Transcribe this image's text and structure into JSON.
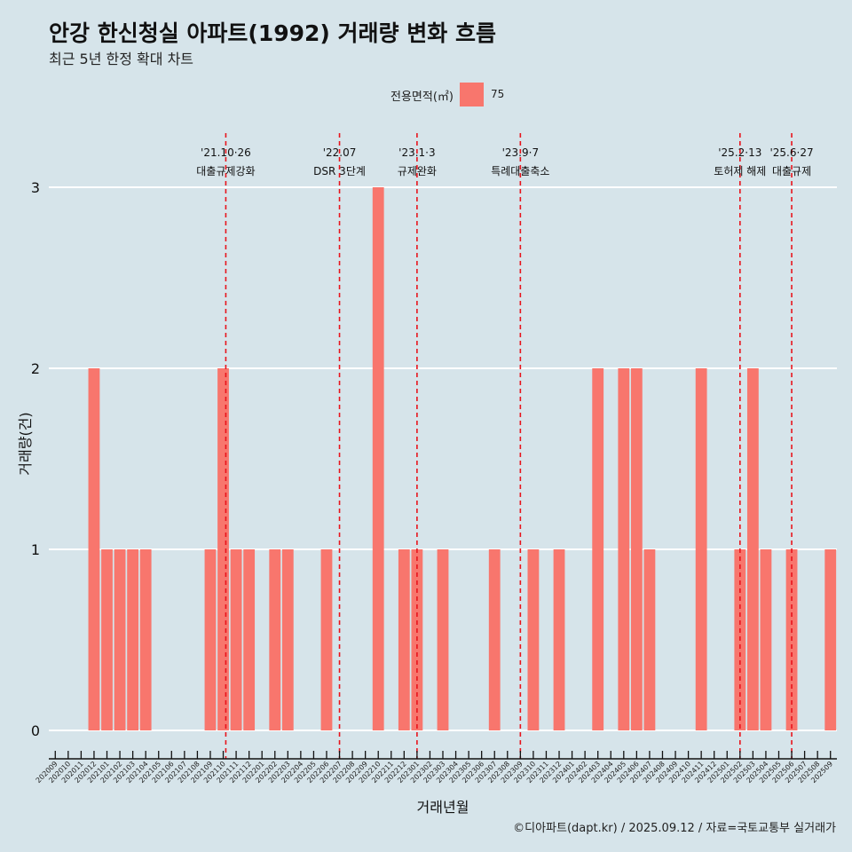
{
  "title": "안강 한신청실 아파트(1992) 거래량 변화 흐름",
  "subtitle": "최근 5년 한정 확대 차트",
  "legend": {
    "title": "전용면적(㎡)",
    "label": "75"
  },
  "caption": "©디아파트(dapt.kr) / 2025.09.12 / 자료=국토교통부 실거래가",
  "colors": {
    "bar": "#f8766d",
    "background": "#d6e4ea",
    "event_line": "#e8141c",
    "grid": "#ffffff"
  },
  "chart_data": {
    "type": "bar",
    "xlabel": "거래년월",
    "ylabel": "거래량(건)",
    "ylim": [
      0,
      3
    ],
    "y_ticks": [
      0,
      1,
      2,
      3
    ],
    "grid": true,
    "legend_position": "top",
    "categories": [
      "202009",
      "202010",
      "202011",
      "202012",
      "202101",
      "202102",
      "202103",
      "202104",
      "202105",
      "202106",
      "202107",
      "202108",
      "202109",
      "202110",
      "202111",
      "202112",
      "202201",
      "202202",
      "202203",
      "202204",
      "202205",
      "202206",
      "202207",
      "202208",
      "202209",
      "202210",
      "202211",
      "202212",
      "202301",
      "202302",
      "202303",
      "202304",
      "202305",
      "202306",
      "202307",
      "202308",
      "202309",
      "202310",
      "202311",
      "202312",
      "202401",
      "202402",
      "202403",
      "202404",
      "202405",
      "202406",
      "202407",
      "202408",
      "202409",
      "202410",
      "202411",
      "202412",
      "202501",
      "202502",
      "202503",
      "202504",
      "202505",
      "202506",
      "202507",
      "202508",
      "202509"
    ],
    "series": [
      {
        "name": "75",
        "values": [
          0,
          0,
          0,
          2,
          1,
          1,
          1,
          1,
          0,
          0,
          0,
          0,
          1,
          2,
          1,
          1,
          0,
          1,
          1,
          0,
          0,
          1,
          0,
          0,
          0,
          3,
          0,
          1,
          1,
          0,
          1,
          0,
          0,
          0,
          1,
          0,
          0,
          1,
          0,
          1,
          0,
          0,
          2,
          0,
          2,
          2,
          1,
          0,
          0,
          0,
          2,
          0,
          0,
          1,
          2,
          1,
          0,
          1,
          0,
          0,
          1
        ]
      }
    ],
    "events": [
      {
        "date": "'21.10·26",
        "label": "대출규제강화",
        "index": 13.2
      },
      {
        "date": "'22.07",
        "label": "DSR 3단계",
        "index": 22.0
      },
      {
        "date": "'23.1·3",
        "label": "규제완화",
        "index": 28.0
      },
      {
        "date": "'23.9·7",
        "label": "특례대출축소",
        "index": 36.0
      },
      {
        "date": "'25.2·13",
        "label": "토허제 해제",
        "index": 53.0
      },
      {
        "date": "'25.6·27",
        "label": "대출규제",
        "index": 57.0
      }
    ]
  }
}
